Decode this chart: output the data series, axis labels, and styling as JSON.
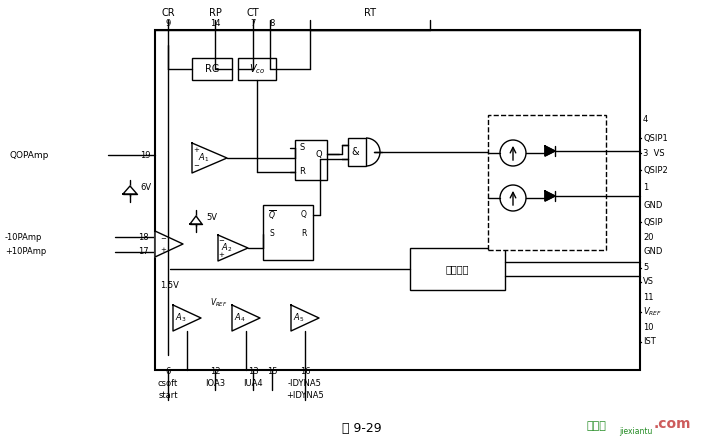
{
  "title": "图 9-29",
  "watermark_cn": "接线图",
  "watermark_en": "jiexiantu",
  "watermark_com": ".com",
  "bg_color": "#ffffff",
  "line_color": "#000000",
  "watermark_cn_color": "#228B22",
  "watermark_en_color": "#228B22",
  "watermark_com_color": "#CD5C5C",
  "fig_width": 7.24,
  "fig_height": 4.41,
  "dpi": 100
}
